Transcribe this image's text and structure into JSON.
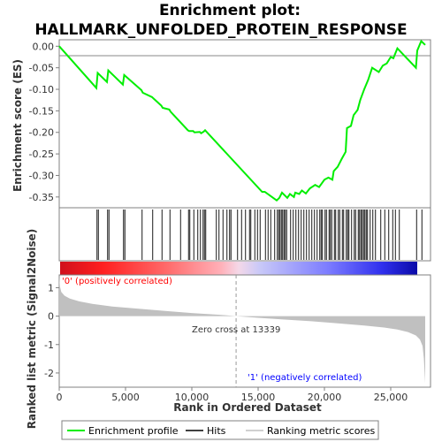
{
  "title_line1": "Enrichment plot:",
  "title_line2": "HALLMARK_UNFOLDED_PROTEIN_RESPONSE",
  "colors": {
    "es_line": "#00ee00",
    "hits": "#000000",
    "metric_fill": "#c0c0c0",
    "pos_label": "#ff0000",
    "neg_label": "#0000ff",
    "zero_line": "#888888"
  },
  "legend": {
    "es": "Enrichment profile",
    "hits": "Hits",
    "metric": "Ranking metric scores"
  },
  "annotations": {
    "pos": "'0' (positively correlated)",
    "neg": "'1' (negatively correlated)",
    "zero": "Zero cross at 13339"
  },
  "chart_data": [
    {
      "type": "line",
      "name": "enrichment-profile",
      "title": "Enrichment plot: HALLMARK_UNFOLDED_PROTEIN_RESPONSE",
      "ylabel": "Enrichment score (ES)",
      "xlim": [
        0,
        28000
      ],
      "ylim": [
        -0.375,
        0.015
      ],
      "yticks": [
        0.0,
        -0.05,
        -0.1,
        -0.15,
        -0.2,
        -0.25,
        -0.3,
        -0.35
      ],
      "ytick_labels": [
        "0.00",
        "-0.05",
        "-0.10",
        "-0.15",
        "-0.20",
        "-0.25",
        "-0.30",
        "-0.35"
      ],
      "grid": false,
      "x": [
        0,
        2800,
        2900,
        3600,
        3700,
        4800,
        4900,
        6200,
        6300,
        7000,
        7100,
        7700,
        7800,
        8300,
        8400,
        9700,
        9800,
        10100,
        10200,
        10600,
        10700,
        10900,
        11000,
        15300,
        15500,
        16400,
        16600,
        16800,
        17200,
        17400,
        17700,
        17800,
        18100,
        18300,
        18600,
        18900,
        19300,
        19600,
        20000,
        20300,
        20600,
        20700,
        21000,
        21300,
        21600,
        21700,
        22000,
        22200,
        22500,
        22700,
        23000,
        23300,
        23600,
        24100,
        24400,
        24700,
        25000,
        25200,
        25500,
        26900,
        27000,
        27300,
        27600
      ],
      "y": [
        0.0,
        -0.097,
        -0.062,
        -0.083,
        -0.056,
        -0.089,
        -0.067,
        -0.102,
        -0.108,
        -0.118,
        -0.121,
        -0.138,
        -0.143,
        -0.147,
        -0.152,
        -0.195,
        -0.197,
        -0.197,
        -0.2,
        -0.199,
        -0.202,
        -0.198,
        -0.195,
        -0.338,
        -0.338,
        -0.358,
        -0.352,
        -0.34,
        -0.352,
        -0.343,
        -0.35,
        -0.34,
        -0.343,
        -0.335,
        -0.342,
        -0.33,
        -0.322,
        -0.327,
        -0.31,
        -0.305,
        -0.31,
        -0.29,
        -0.28,
        -0.262,
        -0.245,
        -0.19,
        -0.185,
        -0.16,
        -0.148,
        -0.125,
        -0.1,
        -0.078,
        -0.05,
        -0.06,
        -0.045,
        -0.04,
        -0.025,
        -0.028,
        -0.005,
        -0.05,
        -0.01,
        0.012,
        0.003
      ]
    },
    {
      "type": "scatter",
      "name": "hits",
      "x": [
        2850,
        2950,
        3650,
        3750,
        4850,
        4950,
        6250,
        7050,
        7750,
        8350,
        9150,
        9750,
        9850,
        10150,
        10450,
        10650,
        10850,
        10950,
        11050,
        11850,
        12050,
        12350,
        12650,
        12850,
        12950,
        13450,
        13750,
        14050,
        14350,
        14450,
        14750,
        14950,
        15150,
        15550,
        15750,
        15950,
        16250,
        16450,
        16550,
        16650,
        16750,
        16850,
        16950,
        17050,
        17150,
        17450,
        17650,
        17850,
        18050,
        18250,
        18450,
        18650,
        18850,
        19050,
        19250,
        19450,
        19650,
        19750,
        19850,
        20050,
        20150,
        20350,
        20450,
        20550,
        20750,
        20850,
        21050,
        21150,
        21350,
        21450,
        21650,
        21750,
        21850,
        22050,
        22250,
        22350,
        22550,
        22650,
        22750,
        22850,
        22950,
        23050,
        23150,
        23250,
        23450,
        23650,
        23850,
        24250,
        24550,
        24850,
        25150,
        25350,
        25650,
        26950,
        27350
      ]
    },
    {
      "type": "area",
      "name": "ranking-metric",
      "ylabel": "Ranked list metric (Signal2Noise)",
      "xlabel": "Rank in Ordered Dataset",
      "xlim": [
        0,
        28000
      ],
      "ylim": [
        -2.5,
        1.45
      ],
      "xticks": [
        0,
        5000,
        10000,
        15000,
        20000,
        25000
      ],
      "xtick_labels": [
        "0",
        "5,000",
        "10,000",
        "15,000",
        "20,000",
        "25,000"
      ],
      "yticks": [
        1,
        0,
        -1,
        -2
      ],
      "ytick_labels": [
        "1",
        "0",
        "-1",
        "-2"
      ],
      "zero_cross": 13339,
      "x": [
        0,
        50,
        150,
        400,
        800,
        1500,
        2500,
        4000,
        6000,
        8000,
        10000,
        12000,
        13339,
        15000,
        17000,
        19000,
        21000,
        23000,
        24500,
        25500,
        26300,
        26900,
        27200,
        27400,
        27500,
        27600
      ],
      "y": [
        1.4,
        1.05,
        0.85,
        0.72,
        0.62,
        0.52,
        0.43,
        0.34,
        0.26,
        0.18,
        0.11,
        0.05,
        0.0,
        -0.06,
        -0.12,
        -0.18,
        -0.25,
        -0.33,
        -0.4,
        -0.47,
        -0.56,
        -0.68,
        -0.82,
        -1.05,
        -1.5,
        -2.35
      ]
    }
  ]
}
